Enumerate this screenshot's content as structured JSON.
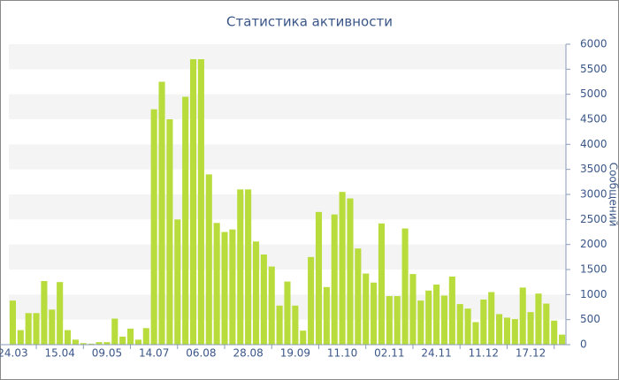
{
  "chart_data": {
    "type": "bar",
    "title": "Статистика активности",
    "y_axis_label": "Сообщений",
    "categories": [
      "24.03",
      null,
      null,
      null,
      null,
      null,
      "15.04",
      null,
      null,
      null,
      null,
      null,
      "09.05",
      null,
      null,
      null,
      null,
      null,
      "14.07",
      null,
      null,
      null,
      null,
      null,
      "06.08",
      null,
      null,
      null,
      null,
      null,
      "28.08",
      null,
      null,
      null,
      null,
      null,
      "19.09",
      null,
      null,
      null,
      null,
      null,
      "11.10",
      null,
      null,
      null,
      null,
      null,
      "02.11",
      null,
      null,
      null,
      null,
      null,
      "24.11",
      null,
      null,
      null,
      null,
      null,
      "11.12",
      null,
      null,
      null,
      null,
      null,
      "17.12",
      null,
      null,
      null,
      null
    ],
    "values": [
      880,
      290,
      630,
      630,
      1270,
      700,
      1250,
      290,
      100,
      30,
      20,
      50,
      50,
      520,
      160,
      320,
      100,
      330,
      4700,
      5250,
      4500,
      2500,
      4950,
      5700,
      5700,
      3400,
      2430,
      2250,
      2300,
      3100,
      3100,
      2060,
      1800,
      1560,
      780,
      1260,
      780,
      280,
      1750,
      2650,
      1150,
      2600,
      3050,
      2920,
      1920,
      1420,
      1240,
      2420,
      970,
      970,
      2320,
      1410,
      880,
      1080,
      1200,
      980,
      1360,
      810,
      720,
      450,
      900,
      1050,
      610,
      540,
      510,
      1140,
      650,
      1020,
      820,
      480,
      200
    ],
    "color": "#b8dc3c",
    "ylim": [
      0,
      6000
    ],
    "yticks": [
      0,
      500,
      1000,
      1500,
      2000,
      2500,
      3000,
      3500,
      4000,
      4500,
      5000,
      5500,
      6000
    ],
    "grid": true
  }
}
